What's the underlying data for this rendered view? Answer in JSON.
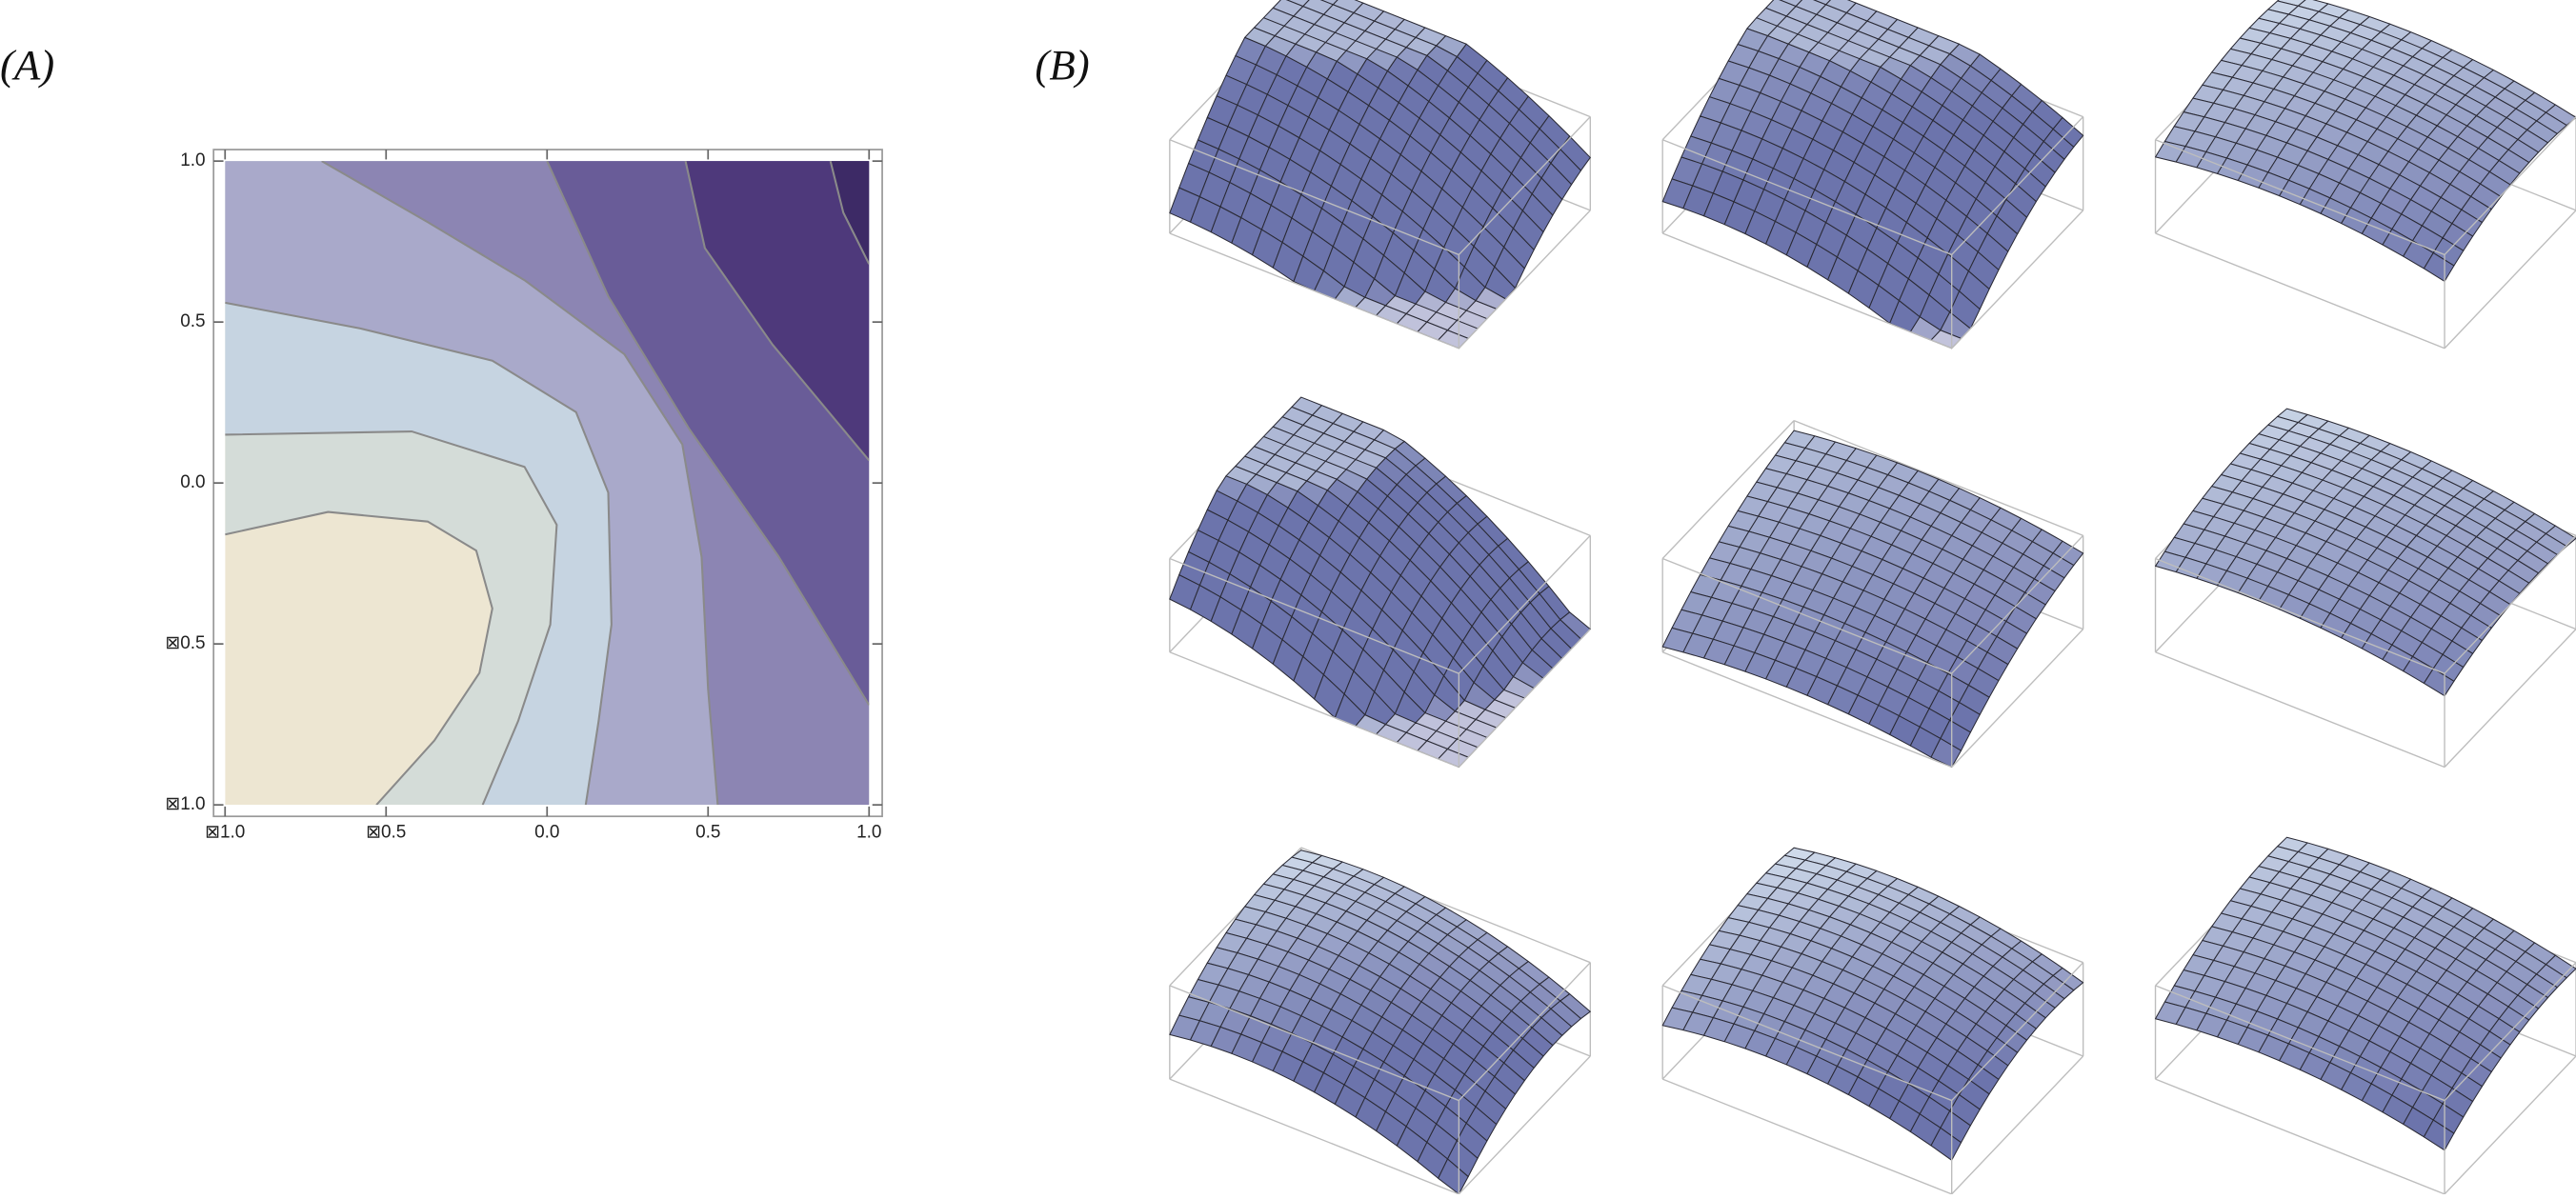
{
  "labels": {
    "panel_a": "(A)",
    "panel_b": "(B)"
  },
  "chart_data": {
    "type": "contour",
    "xlim": [
      -1,
      1
    ],
    "ylim": [
      -1,
      1
    ],
    "xticks": [
      {
        "value": -1,
        "label": "⊠1.0"
      },
      {
        "value": -0.5,
        "label": "⊠0.5"
      },
      {
        "value": 0,
        "label": "0.0"
      },
      {
        "value": 0.5,
        "label": "0.5"
      },
      {
        "value": 1,
        "label": "1.0"
      }
    ],
    "yticks": [
      {
        "value": -1,
        "label": "⊠1.0"
      },
      {
        "value": -0.5,
        "label": "⊠0.5"
      },
      {
        "value": 0,
        "label": "0.0"
      },
      {
        "value": 0.5,
        "label": "0.5"
      },
      {
        "value": 1,
        "label": "1.0"
      }
    ],
    "colors": [
      "#ede6d2",
      "#d4dcd8",
      "#c6d4e1",
      "#a9a9ca",
      "#8c85b3",
      "#695c98",
      "#4e397b",
      "#3d2a66"
    ],
    "contours": [
      {
        "x": [
          -1,
          -0.68,
          -0.37,
          -0.22,
          -0.17,
          -0.21,
          -0.35,
          -0.53
        ],
        "y": [
          -0.16,
          -0.09,
          -0.12,
          -0.21,
          -0.39,
          -0.59,
          -0.8,
          -1
        ]
      },
      {
        "x": [
          -1,
          -0.42,
          -0.07,
          0.03,
          0.01,
          -0.09,
          -0.2
        ],
        "y": [
          0.15,
          0.16,
          0.05,
          -0.13,
          -0.44,
          -0.74,
          -1
        ]
      },
      {
        "x": [
          -1,
          -0.58,
          -0.17,
          0.09,
          0.19,
          0.2,
          0.16,
          0.12
        ],
        "y": [
          0.56,
          0.48,
          0.38,
          0.22,
          -0.03,
          -0.44,
          -0.74,
          -1
        ]
      },
      {
        "x": [
          -0.7,
          -0.37,
          -0.07,
          0.24,
          0.42,
          0.48,
          0.5,
          0.53
        ],
        "y": [
          1,
          0.81,
          0.63,
          0.4,
          0.12,
          -0.23,
          -0.64,
          -1
        ]
      },
      {
        "x": [
          0,
          0.19,
          0.44,
          0.72,
          1
        ],
        "y": [
          1,
          0.58,
          0.17,
          -0.23,
          -0.69
        ]
      },
      {
        "x": [
          0.43,
          0.49,
          0.7,
          1
        ],
        "y": [
          1,
          0.73,
          0.43,
          0.07
        ]
      },
      {
        "x": [
          0.88,
          0.92,
          1
        ],
        "y": [
          1,
          0.84,
          0.68
        ]
      }
    ]
  }
}
